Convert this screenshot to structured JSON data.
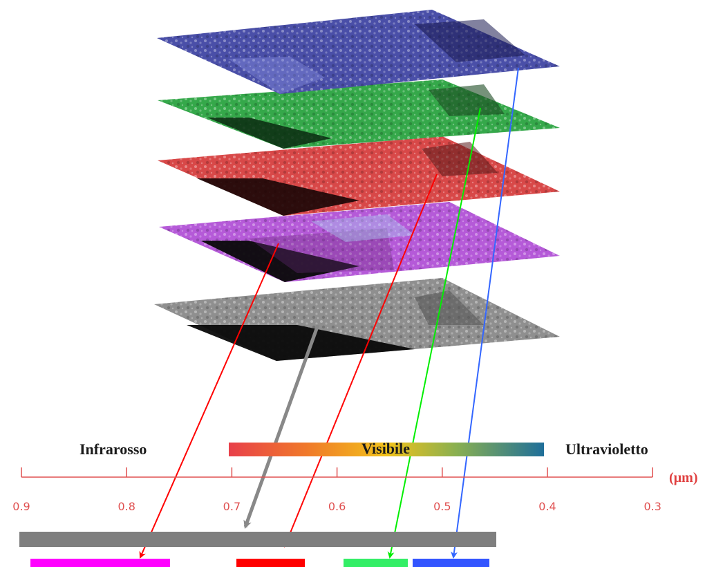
{
  "spectrum": {
    "regions": {
      "infrared": "Infrarosso",
      "visible": "Visibile",
      "ultraviolet": "Ultravioletto"
    },
    "unit": "(µm)",
    "ticks": [
      "0.9",
      "0.8",
      "0.7",
      "0.6",
      "0.5",
      "0.4",
      "0.3"
    ],
    "tick_values": [
      0.9,
      0.8,
      0.7,
      0.6,
      0.5,
      0.4,
      0.3
    ]
  },
  "layers": [
    {
      "id": "blue",
      "tint": "#4a4fa8"
    },
    {
      "id": "green",
      "tint": "#35a84a"
    },
    {
      "id": "red",
      "tint": "#d84848"
    },
    {
      "id": "magenta",
      "tint": "#b55ad8"
    },
    {
      "id": "grey",
      "tint": "#8a8a8a"
    }
  ],
  "bands": [
    {
      "id": "panchromatic",
      "color": "#7f7f7f",
      "range_um": [
        0.9,
        0.45
      ]
    },
    {
      "id": "near-infrared",
      "color": "#ff00ff",
      "range_um": [
        0.89,
        0.76
      ]
    },
    {
      "id": "red",
      "color": "#ff0000",
      "range_um": [
        0.69,
        0.63
      ]
    },
    {
      "id": "green",
      "color": "#33ee66",
      "range_um": [
        0.59,
        0.53
      ]
    },
    {
      "id": "blue",
      "color": "#3355ff",
      "range_um": [
        0.52,
        0.45
      ]
    }
  ],
  "colors": {
    "axis": "#e05050",
    "arrow_red": "#ff0000",
    "arrow_grey": "#888888",
    "arrow_green": "#00ee00",
    "arrow_blue": "#3366ff"
  }
}
